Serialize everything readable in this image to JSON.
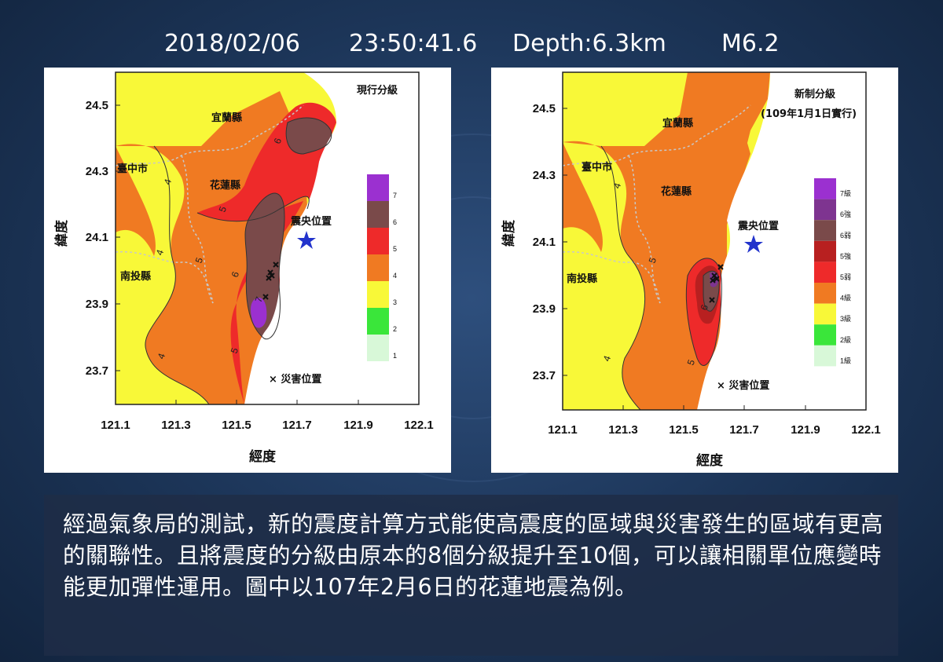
{
  "header": {
    "date": "2018/02/06",
    "time": "23:50:41.6",
    "depth": "Depth:6.3km",
    "magnitude": "M6.2"
  },
  "axes": {
    "x_label": "經度",
    "y_label": "緯度",
    "x_ticks": [
      "121.1",
      "121.3",
      "121.5",
      "121.7",
      "121.9",
      "122.1"
    ],
    "y_ticks": [
      "24.5",
      "24.3",
      "24.1",
      "23.9",
      "23.7"
    ]
  },
  "map_labels": {
    "yilan": "宜蘭縣",
    "taichung": "臺中市",
    "hualien": "花蓮縣",
    "nantou": "南投縣",
    "epicenter": "震央位置",
    "damage": "× 災害位置"
  },
  "maps": [
    {
      "title": "現行分級",
      "subtitle": "",
      "legend": [
        {
          "label": "7",
          "color": "#9b30d0"
        },
        {
          "label": "6",
          "color": "#7a4a4a"
        },
        {
          "label": "5",
          "color": "#ee2a2a"
        },
        {
          "label": "4",
          "color": "#f07a22"
        },
        {
          "label": "3",
          "color": "#f8f838"
        },
        {
          "label": "2",
          "color": "#3ae63a"
        },
        {
          "label": "1",
          "color": "#d8f8d8"
        }
      ],
      "contour_labels": [
        "4",
        "5",
        "5",
        "6",
        "6",
        "7",
        "5",
        "4",
        "4"
      ]
    },
    {
      "title": "新制分級",
      "subtitle": "(109年1月1日實行)",
      "legend": [
        {
          "label": "7級",
          "color": "#9b30d0"
        },
        {
          "label": "6強",
          "color": "#7e3490"
        },
        {
          "label": "6弱",
          "color": "#7a4a4a"
        },
        {
          "label": "5強",
          "color": "#b82020"
        },
        {
          "label": "5弱",
          "color": "#ee2a2a"
        },
        {
          "label": "4級",
          "color": "#f07a22"
        },
        {
          "label": "3級",
          "color": "#f8f838"
        },
        {
          "label": "2級",
          "color": "#3ae63a"
        },
        {
          "label": "1級",
          "color": "#d8f8d8"
        }
      ],
      "contour_labels": [
        "4",
        "5",
        "6",
        "5",
        "4"
      ]
    }
  ],
  "caption": "經過氣象局的測試，新的震度計算方式能使高震度的區域與災害發生的區域有更高的關聯性。且將震度的分級由原本的8個分級提升至10個，可以讓相關單位應變時能更加彈性運用。圖中以107年2月6日的花蓮地震為例。",
  "colors": {
    "level7": "#9b30d0",
    "level6": "#7a4a4a",
    "level5": "#ee2a2a",
    "level4": "#f07a22",
    "level3": "#f8f838",
    "epicenter_star": "#2233cc"
  }
}
